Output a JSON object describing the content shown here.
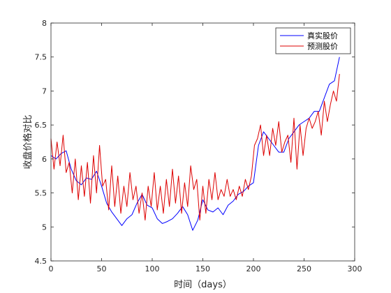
{
  "chart_data": {
    "type": "line",
    "title": "",
    "xlabel": "时间（days）",
    "ylabel": "收盘价格对比",
    "xlim": [
      0,
      300
    ],
    "ylim": [
      4.5,
      8
    ],
    "xticks": [
      0,
      50,
      100,
      150,
      200,
      250,
      300
    ],
    "xtick_labels": [
      "0",
      "50",
      "100",
      "150",
      "200",
      "250",
      "300"
    ],
    "yticks": [
      4.5,
      5,
      5.5,
      6,
      6.5,
      7,
      7.5,
      8
    ],
    "ytick_labels": [
      "4.5",
      "5",
      "5.5",
      "6",
      "6.5",
      "7",
      "7.5",
      "8"
    ],
    "grid": false,
    "legend_position": "top-right",
    "series": [
      {
        "name": "真实股价",
        "color": "#0000ff",
        "x": [
          0,
          5,
          10,
          15,
          20,
          25,
          30,
          35,
          40,
          45,
          50,
          55,
          60,
          65,
          70,
          75,
          80,
          85,
          90,
          95,
          100,
          105,
          110,
          115,
          120,
          125,
          130,
          135,
          140,
          145,
          150,
          155,
          160,
          165,
          170,
          175,
          180,
          185,
          190,
          195,
          200,
          205,
          210,
          215,
          220,
          225,
          230,
          235,
          240,
          245,
          250,
          255,
          260,
          265,
          270,
          275,
          280,
          285
        ],
        "values": [
          6.05,
          6.0,
          6.08,
          6.12,
          5.85,
          5.68,
          5.62,
          5.72,
          5.7,
          5.82,
          5.6,
          5.35,
          5.22,
          5.12,
          5.02,
          5.12,
          5.18,
          5.35,
          5.48,
          5.32,
          5.28,
          5.12,
          5.05,
          5.08,
          5.12,
          5.2,
          5.3,
          5.18,
          4.95,
          5.1,
          5.4,
          5.25,
          5.22,
          5.28,
          5.18,
          5.32,
          5.38,
          5.48,
          5.52,
          5.6,
          5.65,
          6.2,
          6.4,
          6.3,
          6.2,
          6.1,
          6.1,
          6.3,
          6.4,
          6.5,
          6.55,
          6.6,
          6.7,
          6.7,
          6.9,
          7.1,
          7.15,
          7.5
        ]
      },
      {
        "name": "预测股价",
        "color": "#dd0000",
        "x": [
          0,
          3,
          6,
          9,
          12,
          15,
          18,
          21,
          24,
          27,
          30,
          33,
          36,
          39,
          42,
          45,
          48,
          51,
          54,
          57,
          60,
          63,
          66,
          69,
          72,
          75,
          78,
          81,
          84,
          87,
          90,
          93,
          96,
          99,
          102,
          105,
          108,
          111,
          114,
          117,
          120,
          123,
          126,
          129,
          132,
          135,
          138,
          141,
          144,
          147,
          150,
          153,
          156,
          159,
          162,
          165,
          168,
          171,
          174,
          177,
          180,
          183,
          186,
          189,
          192,
          195,
          198,
          201,
          204,
          207,
          210,
          213,
          216,
          219,
          222,
          225,
          228,
          231,
          234,
          237,
          240,
          243,
          246,
          249,
          252,
          255,
          258,
          261,
          264,
          267,
          270,
          273,
          276,
          279,
          282,
          285
        ],
        "values": [
          6.3,
          5.85,
          6.25,
          5.9,
          6.35,
          5.8,
          5.95,
          5.5,
          6.0,
          5.4,
          5.9,
          5.45,
          5.95,
          5.35,
          6.05,
          5.5,
          6.2,
          5.6,
          5.7,
          5.25,
          5.9,
          5.3,
          5.75,
          5.2,
          5.6,
          5.3,
          5.8,
          5.4,
          5.6,
          5.2,
          5.5,
          5.1,
          5.6,
          5.3,
          5.8,
          5.25,
          5.6,
          5.2,
          5.7,
          5.3,
          5.85,
          5.35,
          5.75,
          5.2,
          5.65,
          5.3,
          5.9,
          5.55,
          5.7,
          5.1,
          5.6,
          5.2,
          5.7,
          5.4,
          5.8,
          5.4,
          5.55,
          5.45,
          5.7,
          5.45,
          5.55,
          5.4,
          5.6,
          5.45,
          5.7,
          5.55,
          5.75,
          6.2,
          6.3,
          6.5,
          6.05,
          6.35,
          6.05,
          6.45,
          6.2,
          6.55,
          6.1,
          6.25,
          6.35,
          5.95,
          6.6,
          5.85,
          6.5,
          6.05,
          6.45,
          6.6,
          6.45,
          6.55,
          6.7,
          6.35,
          6.85,
          6.55,
          6.8,
          7.0,
          6.85,
          7.25
        ]
      }
    ]
  }
}
